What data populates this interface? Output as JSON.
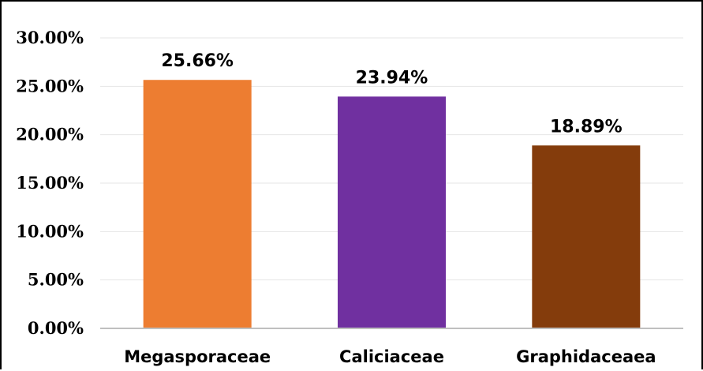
{
  "chart_data": {
    "type": "bar",
    "categories": [
      "Megasporaceae",
      "Caliciaceae",
      "Graphidaceaea"
    ],
    "values": [
      25.66,
      23.94,
      18.89
    ],
    "data_labels": [
      "25.66%",
      "23.94%",
      "18.89%"
    ],
    "colors": [
      "#ed7d31",
      "#7030a0",
      "#843c0c"
    ],
    "ylim": [
      0,
      30
    ],
    "yticks": [
      0,
      5,
      10,
      15,
      20,
      25,
      30
    ],
    "ytick_labels": [
      "0.00%",
      "5.00%",
      "10.00%",
      "15.00%",
      "20.00%",
      "25.00%",
      "30.00%"
    ],
    "grid": true,
    "legend": "none"
  }
}
